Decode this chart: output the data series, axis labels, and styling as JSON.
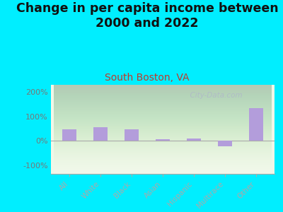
{
  "title": "Change in per capita income between\n2000 and 2022",
  "subtitle": "South Boston, VA",
  "categories": [
    "All",
    "White",
    "Black",
    "Asian",
    "Hispanic",
    "Multirace",
    "Other"
  ],
  "values": [
    48,
    55,
    48,
    8,
    9,
    -22,
    135
  ],
  "bar_color": "#b39ddb",
  "background_outer": "#00eeff",
  "title_fontsize": 12.5,
  "title_color": "#111111",
  "subtitle_fontsize": 10,
  "subtitle_color": "#c0392b",
  "ytick_vals": [
    -100,
    0,
    100,
    200
  ],
  "ylabel_ticks": [
    "-100%",
    "0%",
    "100%",
    "200%"
  ],
  "ylim": [
    -135,
    230
  ],
  "watermark": "  City-Data.com",
  "bar_width": 0.45
}
